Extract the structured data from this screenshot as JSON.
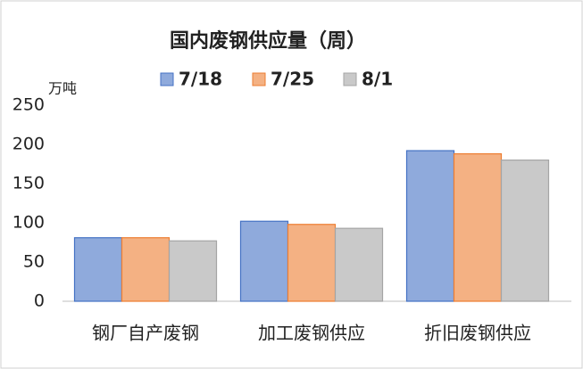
{
  "chart_data": {
    "type": "bar",
    "title": "国内废钢供应量（周）",
    "y_label": "万吨",
    "categories": [
      "钢厂自产废钢",
      "加工废钢供应",
      "折旧废钢供应"
    ],
    "series": [
      {
        "name": "7/18",
        "color": "#8faadc",
        "values": [
          81,
          102,
          192
        ]
      },
      {
        "name": "7/25",
        "color": "#f4b183",
        "values": [
          81,
          98,
          188
        ]
      },
      {
        "name": "8/1",
        "color": "#c9c9c9",
        "values": [
          77,
          93,
          180
        ]
      }
    ],
    "ylim": [
      0,
      250
    ],
    "yticks": [
      0,
      50,
      100,
      150,
      200,
      250
    ],
    "grid": false
  }
}
